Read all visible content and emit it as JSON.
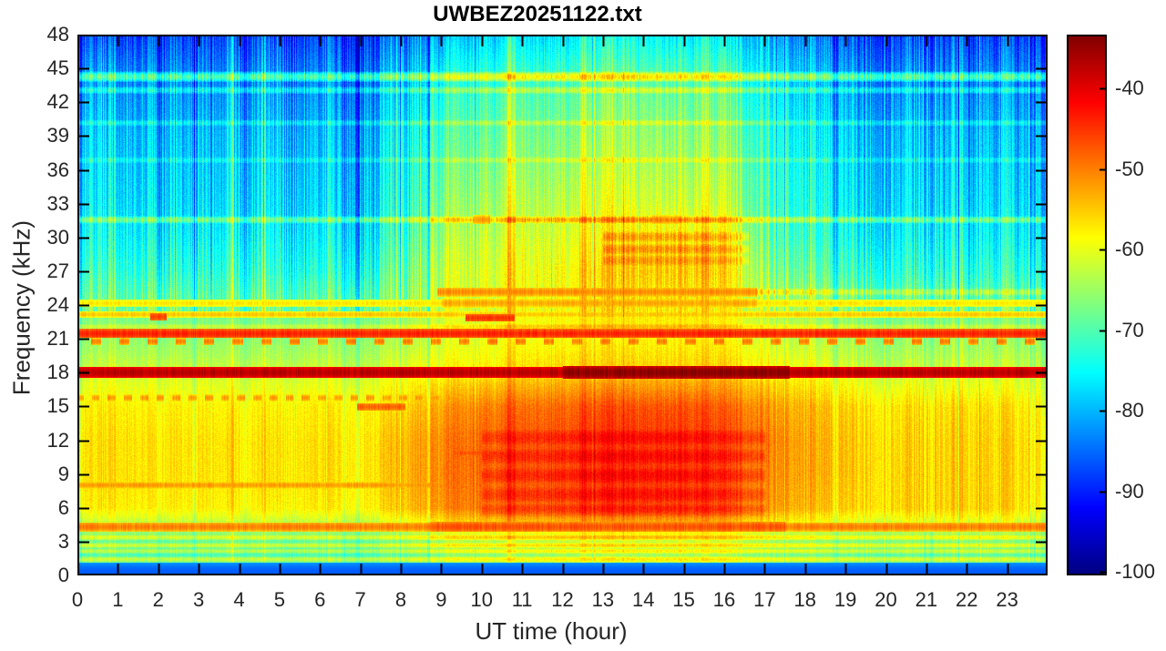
{
  "figure": {
    "background": "#ffffff",
    "text_color": "#262626",
    "axis_color": "#000000"
  },
  "chart_data": {
    "type": "heatmap",
    "subtype": "spectrogram",
    "title": "UWBEZ20251122.txt",
    "xlabel": "UT time (hour)",
    "ylabel": "Frequency (kHz)",
    "x_range": [
      0,
      24
    ],
    "y_range": [
      0,
      48
    ],
    "x_ticks": [
      0,
      1,
      2,
      3,
      4,
      5,
      6,
      7,
      8,
      9,
      10,
      11,
      12,
      13,
      14,
      15,
      16,
      17,
      18,
      19,
      20,
      21,
      22,
      23
    ],
    "y_ticks": [
      0,
      3,
      6,
      9,
      12,
      15,
      18,
      21,
      24,
      27,
      30,
      33,
      36,
      39,
      42,
      45,
      48
    ],
    "colormap": "jet",
    "color_range_db": [
      -100.4,
      -33.3
    ],
    "colorbar": {
      "ticks": [
        -40,
        -50,
        -60,
        -70,
        -80,
        -90,
        -100
      ]
    },
    "noise_seed": 20251122,
    "grid": {
      "hours": [
        0,
        1,
        2,
        3,
        4,
        5,
        6,
        7,
        8,
        9,
        10,
        11,
        12,
        13,
        14,
        15,
        16,
        17,
        18,
        19,
        20,
        21,
        22,
        23,
        24
      ],
      "freqs_khz": [
        48,
        45,
        42,
        39,
        36,
        33,
        30,
        27,
        24,
        21,
        18,
        15,
        12,
        9,
        6,
        3,
        0
      ],
      "values_db": [
        [
          -88,
          -87,
          -88,
          -86,
          -87,
          -88,
          -87,
          -88,
          -85,
          -80,
          -78,
          -77,
          -76,
          -75,
          -75,
          -76,
          -76,
          -82,
          -86,
          -87,
          -88,
          -88,
          -87,
          -88,
          -88
        ],
        [
          -83,
          -82,
          -84,
          -82,
          -83,
          -84,
          -83,
          -84,
          -81,
          -75,
          -73,
          -72,
          -71,
          -70,
          -70,
          -71,
          -71,
          -78,
          -82,
          -83,
          -84,
          -84,
          -83,
          -84,
          -84
        ],
        [
          -81,
          -80,
          -82,
          -80,
          -81,
          -82,
          -81,
          -82,
          -78,
          -72,
          -70,
          -69,
          -68,
          -67,
          -67,
          -68,
          -68,
          -76,
          -80,
          -81,
          -82,
          -82,
          -81,
          -82,
          -82
        ],
        [
          -79,
          -78,
          -80,
          -78,
          -79,
          -80,
          -79,
          -80,
          -76,
          -70,
          -68,
          -67,
          -66,
          -65,
          -65,
          -66,
          -66,
          -74,
          -78,
          -79,
          -80,
          -80,
          -79,
          -80,
          -80
        ],
        [
          -78,
          -77,
          -79,
          -77,
          -78,
          -79,
          -78,
          -79,
          -75,
          -68,
          -66,
          -65,
          -64,
          -63,
          -63,
          -64,
          -64,
          -73,
          -77,
          -78,
          -79,
          -79,
          -78,
          -79,
          -79
        ],
        [
          -77,
          -76,
          -78,
          -76,
          -77,
          -78,
          -77,
          -78,
          -74,
          -66,
          -64,
          -63,
          -62,
          -61,
          -61,
          -62,
          -62,
          -72,
          -76,
          -77,
          -78,
          -78,
          -77,
          -78,
          -78
        ],
        [
          -75,
          -74,
          -76,
          -74,
          -75,
          -76,
          -75,
          -76,
          -72,
          -64,
          -62,
          -61,
          -60,
          -58,
          -57,
          -57,
          -58,
          -70,
          -74,
          -75,
          -76,
          -76,
          -75,
          -76,
          -76
        ],
        [
          -72,
          -71,
          -73,
          -71,
          -72,
          -73,
          -72,
          -73,
          -69,
          -62,
          -60,
          -59,
          -58,
          -56,
          -55,
          -55,
          -56,
          -67,
          -71,
          -72,
          -73,
          -73,
          -72,
          -73,
          -73
        ],
        [
          -68,
          -67,
          -68,
          -67,
          -68,
          -68,
          -67,
          -68,
          -66,
          -61,
          -60,
          -59,
          -58,
          -57,
          -57,
          -57,
          -58,
          -64,
          -66,
          -67,
          -68,
          -68,
          -67,
          -68,
          -68
        ],
        [
          -66,
          -65,
          -66,
          -65,
          -66,
          -66,
          -65,
          -66,
          -64,
          -61,
          -60,
          -59,
          -58,
          -58,
          -58,
          -58,
          -58,
          -62,
          -64,
          -65,
          -66,
          -66,
          -65,
          -66,
          -66
        ],
        [
          -62,
          -61,
          -62,
          -61,
          -62,
          -62,
          -61,
          -62,
          -60,
          -58,
          -57,
          -56,
          -55,
          -55,
          -55,
          -55,
          -55,
          -58,
          -60,
          -61,
          -62,
          -62,
          -61,
          -62,
          -62
        ],
        [
          -58,
          -57,
          -58,
          -57,
          -58,
          -58,
          -57,
          -58,
          -56,
          -52,
          -50,
          -49,
          -48,
          -47,
          -47,
          -47,
          -48,
          -52,
          -55,
          -56,
          -57,
          -57,
          -56,
          -57,
          -58
        ],
        [
          -57,
          -56,
          -57,
          -56,
          -57,
          -57,
          -56,
          -57,
          -54,
          -50,
          -48,
          -47,
          -46,
          -45,
          -45,
          -45,
          -46,
          -50,
          -54,
          -55,
          -56,
          -56,
          -55,
          -56,
          -57
        ],
        [
          -57,
          -56,
          -57,
          -56,
          -57,
          -57,
          -56,
          -57,
          -54,
          -50,
          -48,
          -47,
          -46,
          -45,
          -45,
          -45,
          -46,
          -51,
          -54,
          -55,
          -56,
          -56,
          -55,
          -56,
          -57
        ],
        [
          -58,
          -57,
          -58,
          -57,
          -58,
          -58,
          -57,
          -58,
          -55,
          -51,
          -49,
          -48,
          -47,
          -46,
          -46,
          -46,
          -47,
          -52,
          -55,
          -56,
          -56,
          -56,
          -55,
          -56,
          -58
        ],
        [
          -68,
          -68,
          -69,
          -68,
          -68,
          -69,
          -68,
          -69,
          -67,
          -64,
          -63,
          -63,
          -62,
          -62,
          -62,
          -62,
          -62,
          -65,
          -66,
          -67,
          -67,
          -67,
          -66,
          -67,
          -68
        ],
        [
          -72,
          -72,
          -73,
          -72,
          -72,
          -73,
          -72,
          -73,
          -72,
          -70,
          -69,
          -69,
          -68,
          -68,
          -68,
          -68,
          -68,
          -70,
          -71,
          -71,
          -72,
          -72,
          -71,
          -72,
          -72
        ]
      ]
    },
    "spectral_lines": [
      {
        "f": 44.3,
        "w": 0.5,
        "boost": 13
      },
      {
        "f": 43.1,
        "w": 0.35,
        "boost": 7
      },
      {
        "f": 40.2,
        "w": 0.3,
        "boost": 5
      },
      {
        "f": 36.9,
        "w": 0.3,
        "boost": 4
      },
      {
        "f": 31.6,
        "w": 0.35,
        "boost": 9
      },
      {
        "f": 31.6,
        "w": 0.4,
        "db": -52,
        "t": [
          9.8,
          10.2
        ]
      },
      {
        "f": 31.6,
        "w": 0.4,
        "db": -52,
        "t": [
          14.2,
          14.9
        ]
      },
      {
        "f": 30.1,
        "w": 0.5,
        "boost": 5,
        "t": [
          13,
          16.6
        ]
      },
      {
        "f": 29.0,
        "w": 0.5,
        "boost": 5,
        "t": [
          13,
          16.6
        ]
      },
      {
        "f": 28.0,
        "w": 0.5,
        "boost": 4,
        "t": [
          13,
          16.6
        ]
      },
      {
        "f": 25.2,
        "w": 0.4,
        "db": -51,
        "t": [
          8.9,
          16.8
        ]
      },
      {
        "f": 25.2,
        "w": 0.35,
        "boost": 6,
        "t": [
          16.8,
          24
        ]
      },
      {
        "f": 24.2,
        "w": 0.35,
        "db": -57
      },
      {
        "f": 24.2,
        "w": 0.4,
        "db": -53,
        "t": [
          9,
          16.8
        ]
      },
      {
        "f": 23.2,
        "w": 0.3,
        "db": -55
      },
      {
        "f": 23.0,
        "w": 0.35,
        "db": -46,
        "t": [
          1.8,
          2.2
        ]
      },
      {
        "f": 22.9,
        "w": 0.35,
        "db": -45,
        "t": [
          9.6,
          10.8
        ]
      },
      {
        "f": 22.1,
        "w": 0.3,
        "boost": 4
      },
      {
        "f": 21.5,
        "w": 0.4,
        "db": -44
      },
      {
        "f": 20.8,
        "w": 0.3,
        "db": -50,
        "dash": [
          0.25,
          0.45
        ]
      },
      {
        "f": 18.05,
        "w": 0.5,
        "db": -37
      },
      {
        "f": 18.05,
        "w": 0.55,
        "db": -34,
        "t": [
          12,
          17.6
        ]
      },
      {
        "f": 15.8,
        "w": 0.3,
        "db": -52,
        "t": [
          0,
          9.2
        ],
        "dash": [
          0.2,
          0.2
        ]
      },
      {
        "f": 15.0,
        "w": 0.35,
        "db": -48,
        "t": [
          6.9,
          8.1
        ]
      },
      {
        "f": 10.9,
        "w": 0.3,
        "db": -47,
        "t": [
          9.3,
          10.8
        ]
      },
      {
        "f": 12.3,
        "w": 0.7,
        "boost": 3,
        "t": [
          10,
          17
        ]
      },
      {
        "f": 10.6,
        "w": 0.7,
        "boost": 3,
        "t": [
          10,
          17
        ]
      },
      {
        "f": 8.9,
        "w": 0.7,
        "boost": 3,
        "t": [
          10,
          17
        ]
      },
      {
        "f": 7.2,
        "w": 0.7,
        "boost": 3,
        "t": [
          10,
          17
        ]
      },
      {
        "f": 5.8,
        "w": 0.6,
        "boost": 3,
        "t": [
          10,
          17
        ]
      },
      {
        "f": 8.05,
        "w": 0.3,
        "db": -52,
        "t": [
          0,
          9.2
        ]
      },
      {
        "f": 4.35,
        "w": 0.4,
        "db": -50
      },
      {
        "f": 4.35,
        "w": 0.45,
        "db": -47,
        "t": [
          8.7,
          17.5
        ]
      },
      {
        "f": 3.4,
        "w": 0.25,
        "boost": 6
      },
      {
        "f": 2.7,
        "w": 0.25,
        "boost": 7
      },
      {
        "f": 2.2,
        "w": 0.25,
        "boost": 6
      },
      {
        "f": 1.45,
        "w": 0.3,
        "boost": 8
      },
      {
        "f": 0.9,
        "w": 0.25,
        "boost": 5
      },
      {
        "f": 0.3,
        "w": 0.85,
        "db": -86,
        "mode": "set"
      }
    ],
    "stripe_noise": {
      "high_band_db": 6.2,
      "mid_band_db": 3.1,
      "low_band_db": 2.6,
      "night_boost": 1.55,
      "evening_boost": 1.5,
      "day_start": 8.8,
      "day_end": 16.9,
      "burst_high_db": 5.5,
      "burst_mid_db": 2.8
    }
  }
}
